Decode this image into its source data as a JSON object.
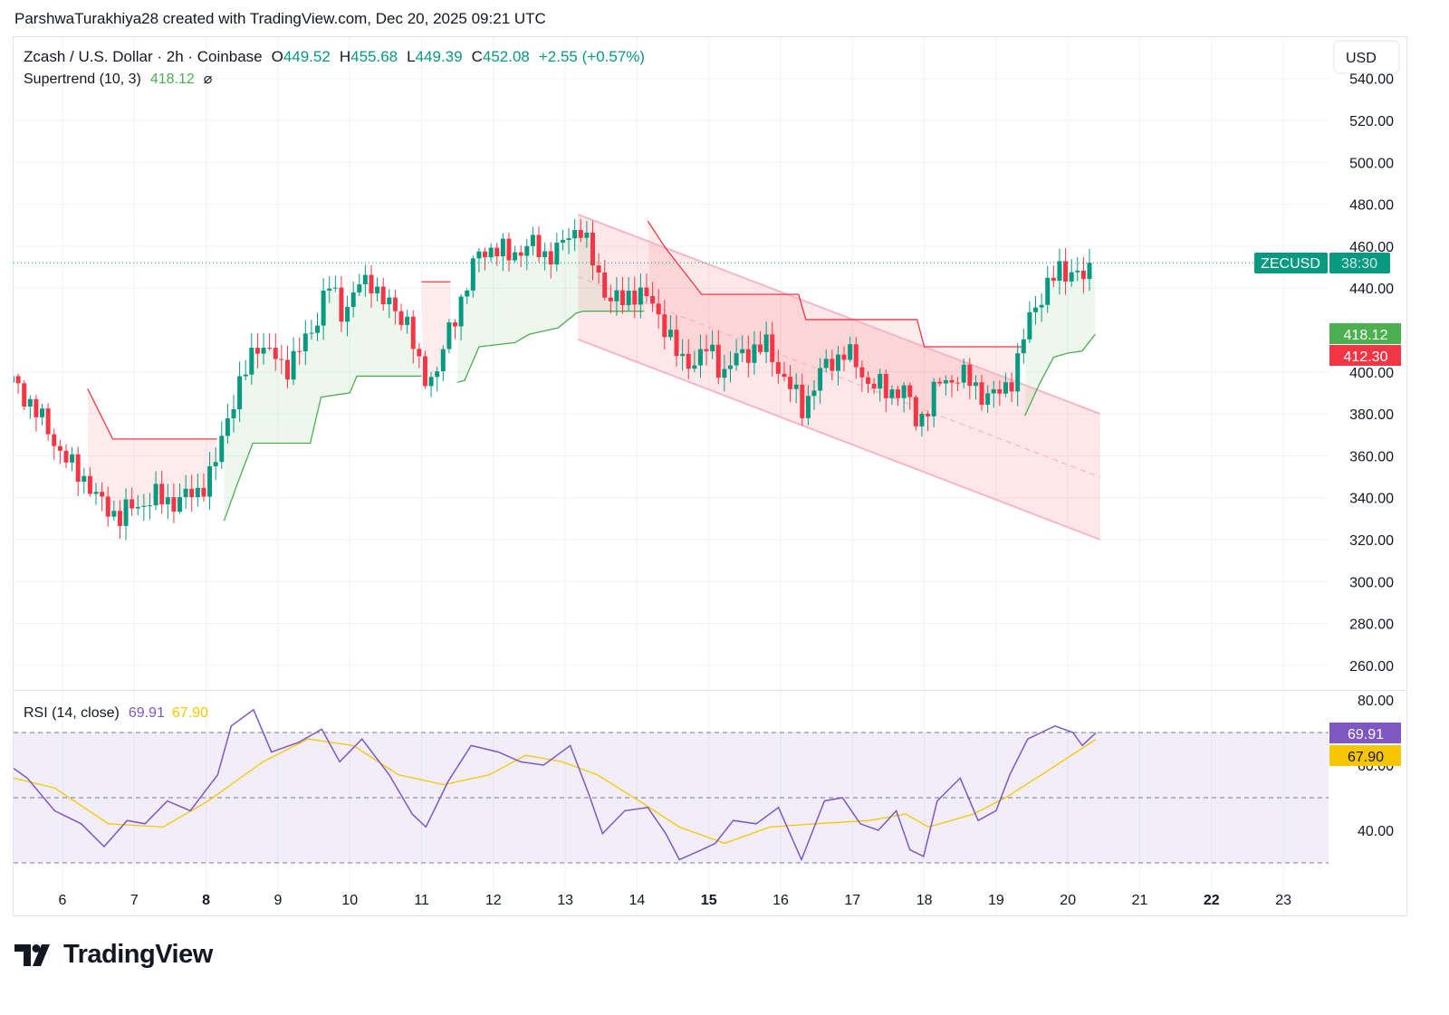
{
  "credit": "ParshwaTurakhiya28 created with TradingView.com, Dec 20, 2025 09:21 UTC",
  "brand": "TradingView",
  "currency_button": "USD",
  "legend": {
    "symbol": "Zcash / U.S. Dollar · 2h · Coinbase",
    "o_label": "O",
    "o": "449.52",
    "h_label": "H",
    "h": "455.68",
    "l_label": "L",
    "l": "449.39",
    "c_label": "C",
    "c": "452.08",
    "change": "+2.55 (+0.57%)",
    "indicator": "Supertrend (10, 3)",
    "indicator_value": "418.12",
    "indicator_hidden_icon": "⌀"
  },
  "rsi_legend": {
    "name": "RSI (14, close)",
    "rsi": "69.91",
    "ma": "67.90"
  },
  "price_tag": {
    "symbol": "ZECUSD",
    "countdown": "38:30"
  },
  "axis_badges": {
    "supertrend_up": "418.12",
    "supertrend_down": "412.30",
    "rsi": "69.91",
    "rsi_ma": "67.90"
  },
  "colors": {
    "up": "#089981",
    "down": "#f23645",
    "st_up": "#4caf50",
    "st_down": "#f23645",
    "rsi": "#7e57c2",
    "rsi_ma": "#f7c600",
    "channel": "#f7b5c9"
  },
  "chart_data": {
    "type": "candlestick",
    "title": "Zcash / U.S. Dollar · 2h · Coinbase",
    "interval_hours": 2,
    "x_tick_labels": [
      {
        "day": 6,
        "label": "6"
      },
      {
        "day": 7,
        "label": "7"
      },
      {
        "day": 8,
        "label": "8",
        "bold": true
      },
      {
        "day": 9,
        "label": "9"
      },
      {
        "day": 10,
        "label": "10"
      },
      {
        "day": 11,
        "label": "11"
      },
      {
        "day": 12,
        "label": "12"
      },
      {
        "day": 13,
        "label": "13"
      },
      {
        "day": 14,
        "label": "14"
      },
      {
        "day": 15,
        "label": "15",
        "bold": true
      },
      {
        "day": 16,
        "label": "16"
      },
      {
        "day": 17,
        "label": "17"
      },
      {
        "day": 18,
        "label": "18"
      },
      {
        "day": 19,
        "label": "19"
      },
      {
        "day": 20,
        "label": "20"
      },
      {
        "day": 21,
        "label": "21"
      },
      {
        "day": 22,
        "label": "22",
        "bold": true
      },
      {
        "day": 23,
        "label": "23"
      }
    ],
    "y_ticks": [
      "540.00",
      "520.00",
      "500.00",
      "480.00",
      "460.00",
      "440.00",
      "400.00",
      "380.00",
      "360.00",
      "340.00",
      "320.00",
      "300.00",
      "280.00",
      "260.00"
    ],
    "ylim": [
      250,
      545
    ],
    "last_price": 452.08,
    "close_path": [
      [
        5.3,
        395
      ],
      [
        5.5,
        388
      ],
      [
        5.8,
        372
      ],
      [
        6.1,
        355
      ],
      [
        6.3,
        350
      ],
      [
        6.5,
        338
      ],
      [
        6.8,
        331
      ],
      [
        7.0,
        336
      ],
      [
        7.3,
        340
      ],
      [
        7.6,
        338
      ],
      [
        7.9,
        344
      ],
      [
        8.1,
        352
      ],
      [
        8.3,
        380
      ],
      [
        8.5,
        395
      ],
      [
        8.7,
        415
      ],
      [
        8.9,
        408
      ],
      [
        9.1,
        402
      ],
      [
        9.3,
        410
      ],
      [
        9.5,
        422
      ],
      [
        9.7,
        442
      ],
      [
        9.9,
        428
      ],
      [
        10.1,
        440
      ],
      [
        10.3,
        444
      ],
      [
        10.5,
        432
      ],
      [
        10.8,
        425
      ],
      [
        11.0,
        396
      ],
      [
        11.2,
        400
      ],
      [
        11.4,
        420
      ],
      [
        11.6,
        440
      ],
      [
        11.8,
        456
      ],
      [
        12.0,
        460
      ],
      [
        12.2,
        455
      ],
      [
        12.5,
        461
      ],
      [
        12.7,
        456
      ],
      [
        12.9,
        458
      ],
      [
        13.2,
        471
      ],
      [
        13.4,
        450
      ],
      [
        13.6,
        436
      ],
      [
        13.8,
        433
      ],
      [
        14.0,
        440
      ],
      [
        14.2,
        432
      ],
      [
        14.4,
        422
      ],
      [
        14.6,
        404
      ],
      [
        14.8,
        406
      ],
      [
        15.0,
        411
      ],
      [
        15.2,
        400
      ],
      [
        15.5,
        410
      ],
      [
        15.8,
        412
      ],
      [
        16.0,
        400
      ],
      [
        16.3,
        383
      ],
      [
        16.6,
        402
      ],
      [
        16.9,
        410
      ],
      [
        17.2,
        396
      ],
      [
        17.5,
        390
      ],
      [
        17.7,
        393
      ],
      [
        17.9,
        375
      ],
      [
        18.2,
        394
      ],
      [
        18.5,
        399
      ],
      [
        18.8,
        390
      ],
      [
        19.0,
        388
      ],
      [
        19.2,
        396
      ],
      [
        19.3,
        405
      ],
      [
        19.5,
        430
      ],
      [
        19.7,
        440
      ],
      [
        19.9,
        449
      ],
      [
        20.1,
        448
      ],
      [
        20.25,
        442
      ],
      [
        20.38,
        452
      ]
    ],
    "supertrend": [
      {
        "trend": "down",
        "points": [
          [
            6.35,
            392
          ],
          [
            6.7,
            368
          ],
          [
            8.15,
            368
          ]
        ]
      },
      {
        "trend": "up",
        "points": [
          [
            8.25,
            329
          ],
          [
            8.45,
            348
          ],
          [
            8.65,
            366
          ],
          [
            9.45,
            366
          ],
          [
            9.6,
            388
          ],
          [
            10.0,
            390
          ],
          [
            10.1,
            398
          ],
          [
            11.0,
            398
          ]
        ]
      },
      {
        "trend": "down",
        "points": [
          [
            11.0,
            443
          ],
          [
            11.4,
            443
          ]
        ]
      },
      {
        "trend": "up",
        "points": [
          [
            11.5,
            395
          ],
          [
            11.6,
            396
          ],
          [
            11.8,
            412
          ],
          [
            12.3,
            414
          ],
          [
            12.5,
            418
          ],
          [
            12.9,
            421
          ],
          [
            13.15,
            428
          ],
          [
            13.25,
            429
          ],
          [
            14.1,
            429
          ]
        ]
      },
      {
        "trend": "down",
        "points": [
          [
            14.15,
            472
          ],
          [
            14.4,
            459
          ],
          [
            14.9,
            437
          ],
          [
            16.25,
            437
          ],
          [
            16.35,
            425
          ],
          [
            17.9,
            425
          ],
          [
            18.0,
            412
          ],
          [
            19.35,
            412
          ]
        ]
      },
      {
        "trend": "up",
        "points": [
          [
            19.4,
            379
          ],
          [
            19.6,
            394
          ],
          [
            19.8,
            407
          ],
          [
            20.0,
            409
          ],
          [
            20.2,
            410
          ],
          [
            20.38,
            418
          ]
        ]
      }
    ],
    "channel": {
      "start_day": 13.18,
      "end_day": 20.45,
      "upper": [
        475.1,
        380.0
      ],
      "middle": [
        445.3,
        349.8
      ],
      "lower": [
        415.5,
        320.0
      ]
    },
    "rsi": {
      "title": "RSI (14, close)",
      "ylim": [
        27,
        82
      ],
      "y_ticks": [
        "80.00",
        "60.00",
        "40.00"
      ],
      "bands": [
        70,
        50,
        30
      ],
      "values": [
        [
          5.32,
          59
        ],
        [
          5.51,
          56
        ],
        [
          5.89,
          46
        ],
        [
          6.26,
          42
        ],
        [
          6.58,
          35
        ],
        [
          6.9,
          43
        ],
        [
          7.15,
          42
        ],
        [
          7.46,
          49
        ],
        [
          7.78,
          46
        ],
        [
          8.16,
          57
        ],
        [
          8.35,
          72
        ],
        [
          8.66,
          77
        ],
        [
          8.91,
          64
        ],
        [
          9.29,
          67
        ],
        [
          9.61,
          71
        ],
        [
          9.86,
          61
        ],
        [
          10.17,
          68
        ],
        [
          10.55,
          57
        ],
        [
          10.87,
          45
        ],
        [
          11.06,
          41
        ],
        [
          11.37,
          55
        ],
        [
          11.69,
          66
        ],
        [
          12.07,
          64
        ],
        [
          12.38,
          61
        ],
        [
          12.7,
          60
        ],
        [
          13.07,
          66
        ],
        [
          13.33,
          51
        ],
        [
          13.52,
          39
        ],
        [
          13.83,
          46
        ],
        [
          14.15,
          47
        ],
        [
          14.4,
          39
        ],
        [
          14.59,
          31
        ],
        [
          14.9,
          34
        ],
        [
          15.09,
          36
        ],
        [
          15.34,
          43
        ],
        [
          15.66,
          42
        ],
        [
          15.97,
          47
        ],
        [
          16.29,
          31
        ],
        [
          16.61,
          49
        ],
        [
          16.86,
          50
        ],
        [
          17.11,
          42
        ],
        [
          17.36,
          40
        ],
        [
          17.61,
          46
        ],
        [
          17.8,
          34
        ],
        [
          17.99,
          32
        ],
        [
          18.18,
          49
        ],
        [
          18.5,
          56
        ],
        [
          18.75,
          43
        ],
        [
          19.0,
          46
        ],
        [
          19.19,
          57
        ],
        [
          19.44,
          68
        ],
        [
          19.63,
          70
        ],
        [
          19.82,
          72
        ],
        [
          20.07,
          70
        ],
        [
          20.2,
          66
        ],
        [
          20.39,
          69.91
        ]
      ],
      "ma": [
        [
          5.32,
          56
        ],
        [
          5.89,
          53
        ],
        [
          6.64,
          42
        ],
        [
          7.4,
          41
        ],
        [
          8.03,
          49
        ],
        [
          8.79,
          61
        ],
        [
          9.42,
          68
        ],
        [
          10.05,
          66
        ],
        [
          10.68,
          57
        ],
        [
          11.31,
          54
        ],
        [
          11.94,
          57
        ],
        [
          12.45,
          63
        ],
        [
          12.96,
          61
        ],
        [
          13.45,
          57
        ],
        [
          13.96,
          50
        ],
        [
          14.59,
          41
        ],
        [
          15.22,
          36
        ],
        [
          15.85,
          41
        ],
        [
          16.48,
          42
        ],
        [
          17.24,
          43
        ],
        [
          17.74,
          45
        ],
        [
          18.06,
          41
        ],
        [
          18.69,
          45
        ],
        [
          19.13,
          50
        ],
        [
          19.63,
          57
        ],
        [
          20.39,
          67.9
        ]
      ]
    }
  }
}
